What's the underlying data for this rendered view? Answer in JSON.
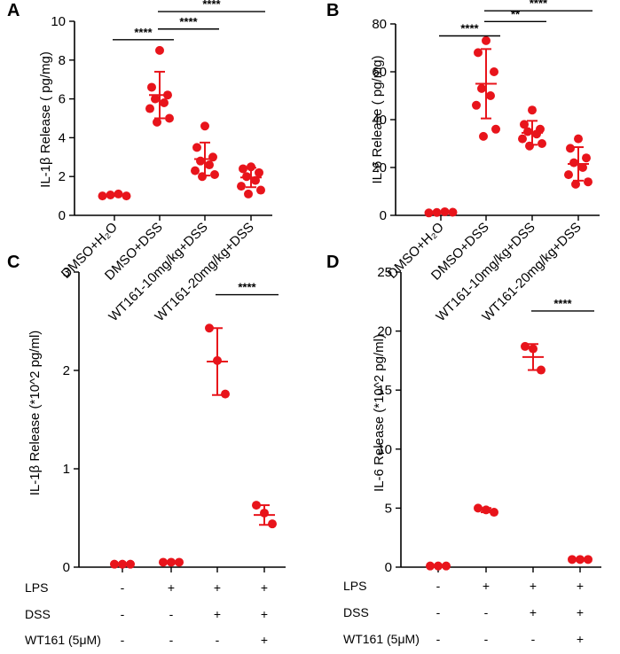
{
  "accent_color": "#e8141b",
  "chart_data": [
    {
      "panel": "A",
      "type": "scatter",
      "ylabel": "IL-1β Release ( pg/mg)",
      "ylim": [
        0,
        10
      ],
      "yticks": [
        0,
        2,
        4,
        6,
        8,
        10
      ],
      "categories": [
        "DMSO+H₂O",
        "DMSO+DSS",
        "WT161-10mg/kg+DSS",
        "WT161-20mg/kg+DSS"
      ],
      "points": [
        [
          1.0,
          1.05,
          1.1,
          1.0
        ],
        [
          8.5,
          6.6,
          6.2,
          6.0,
          5.8,
          5.5,
          5.0,
          4.8
        ],
        [
          4.6,
          3.5,
          3.0,
          2.8,
          2.6,
          2.3,
          2.1,
          2.0
        ],
        [
          2.5,
          2.4,
          2.2,
          2.0,
          1.8,
          1.5,
          1.3,
          1.1
        ]
      ],
      "mean": [
        1.05,
        6.2,
        2.9,
        1.95
      ],
      "sd": [
        0.05,
        1.2,
        0.85,
        0.5
      ],
      "significance": [
        {
          "from": 0,
          "to": 1,
          "label": "****",
          "level": 9.05
        },
        {
          "from": 1,
          "to": 2,
          "label": "****",
          "level": 9.6
        },
        {
          "from": 1,
          "to": 3,
          "label": "****",
          "level": 10.5
        }
      ]
    },
    {
      "panel": "B",
      "type": "scatter",
      "ylabel": "IL-6 Release ( pg/mg)",
      "ylim": [
        0,
        80
      ],
      "yticks": [
        0,
        20,
        40,
        60,
        80
      ],
      "categories": [
        "DMSO+H₂O",
        "DMSO+DSS",
        "WT161-10mg/kg+DSS",
        "WT161-20mg/kg+DSS"
      ],
      "points": [
        [
          1.0,
          1.2,
          1.5,
          1.3
        ],
        [
          73,
          68,
          60,
          53,
          50,
          46,
          36,
          33
        ],
        [
          44,
          38,
          36,
          35,
          34,
          32,
          30,
          29
        ],
        [
          32,
          28,
          24,
          22,
          20,
          17,
          14,
          13
        ]
      ],
      "mean": [
        1.2,
        55,
        34.5,
        21.5
      ],
      "sd": [
        0.3,
        14.5,
        5.0,
        7.0
      ],
      "significance": [
        {
          "from": 0,
          "to": 1,
          "label": "****",
          "level": 75
        },
        {
          "from": 1,
          "to": 2,
          "label": "**",
          "level": 81
        },
        {
          "from": 1,
          "to": 3,
          "label": "****",
          "level": 85.5
        }
      ]
    },
    {
      "panel": "C",
      "type": "scatter",
      "ylabel": "IL-1β Release (*10^2 pg/ml)",
      "ylim": [
        0,
        3
      ],
      "yticks": [
        0,
        1,
        2,
        3
      ],
      "points": [
        [
          0.03,
          0.03,
          0.03
        ],
        [
          0.05,
          0.05,
          0.05
        ],
        [
          2.43,
          2.1,
          1.76
        ],
        [
          0.63,
          0.55,
          0.44
        ]
      ],
      "mean": [
        0.03,
        0.05,
        2.09,
        0.53
      ],
      "sd": [
        0.0,
        0.0,
        0.34,
        0.1
      ],
      "significance": [
        {
          "from": 2,
          "to": 3,
          "label": "****",
          "level": 2.77
        }
      ],
      "conditions": [
        {
          "name": "LPS",
          "values": [
            "-",
            "+",
            "+",
            "+"
          ]
        },
        {
          "name": "DSS",
          "values": [
            "-",
            "-",
            "+",
            "+"
          ]
        },
        {
          "name": "WT161 (5μM)",
          "values": [
            "-",
            "-",
            "-",
            "+"
          ]
        }
      ]
    },
    {
      "panel": "D",
      "type": "scatter",
      "ylabel": "IL-6 Release (*10^2 pg/ml)",
      "ylim": [
        0,
        25
      ],
      "yticks": [
        0,
        5,
        10,
        15,
        20,
        25
      ],
      "points": [
        [
          0.1,
          0.1,
          0.1
        ],
        [
          5.0,
          4.85,
          4.65
        ],
        [
          18.7,
          18.5,
          16.7
        ],
        [
          0.65,
          0.65,
          0.65
        ]
      ],
      "mean": [
        0.1,
        4.83,
        17.8,
        0.65
      ],
      "sd": [
        0.0,
        0.18,
        1.1,
        0.0
      ],
      "significance": [
        {
          "from": 2,
          "to": 3,
          "label": "****",
          "level": 21.7
        }
      ],
      "conditions": [
        {
          "name": "LPS",
          "values": [
            "-",
            "+",
            "+",
            "+"
          ]
        },
        {
          "name": "DSS",
          "values": [
            "-",
            "-",
            "+",
            "+"
          ]
        },
        {
          "name": "WT161 (5μM)",
          "values": [
            "-",
            "-",
            "-",
            "+"
          ]
        }
      ]
    }
  ]
}
